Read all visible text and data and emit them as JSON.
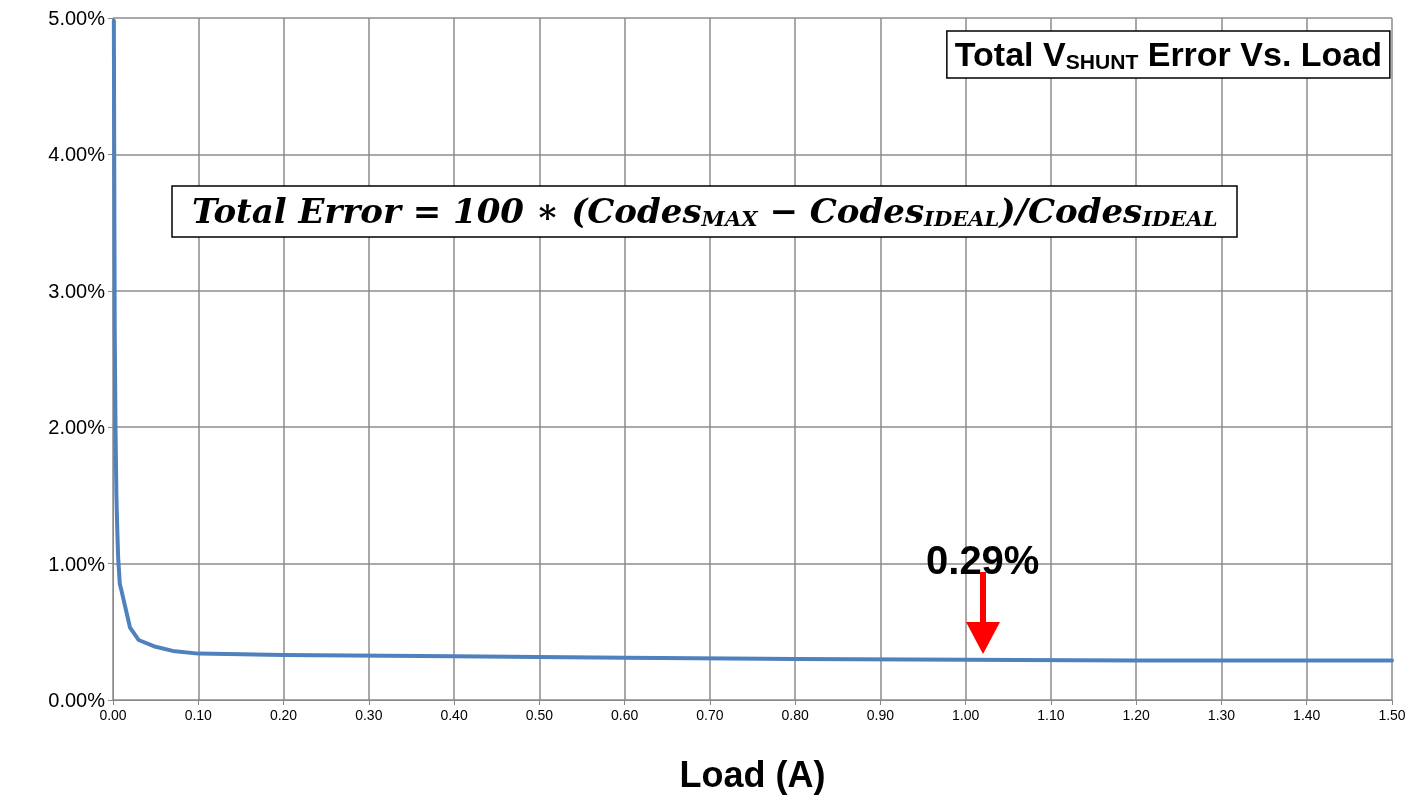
{
  "chart_data": {
    "type": "line",
    "title": "Total V$_{SHUNT}$ Error Vs. Load",
    "xlabel": "Load (A)",
    "annotations": [
      "Total Error = 100 ∗ (Codes$_{MAX}$ − Codes$_{IDEAL}$)/Codes$_{IDEAL}$",
      {
        "text": "0.29%",
        "x": 1.02,
        "y": 0.29
      }
    ],
    "series": [
      {
        "color": "#4f81bd",
        "x": [
          0.001,
          0.002,
          0.003,
          0.004,
          0.005,
          0.006,
          0.007,
          0.008,
          0.01,
          0.02,
          0.03,
          0.05,
          0.07,
          0.1,
          0.2,
          0.4,
          0.6,
          0.8,
          1.0,
          1.2,
          1.5
        ],
        "values": [
          4.98,
          2.72,
          1.97,
          1.5,
          1.25,
          1.05,
          0.95,
          0.85,
          0.8,
          0.53,
          0.44,
          0.39,
          0.36,
          0.34,
          0.33,
          0.32,
          0.31,
          0.3,
          0.295,
          0.29,
          0.29
        ]
      }
    ],
    "xlim": [
      0,
      1.5
    ],
    "xticks": [
      {
        "value": 0,
        "label": "0.00"
      },
      {
        "value": 0.1,
        "label": "0.10"
      },
      {
        "value": 0.2,
        "label": "0.20"
      },
      {
        "value": 0.3,
        "label": "0.30"
      },
      {
        "value": 0.4,
        "label": "0.40"
      },
      {
        "value": 0.5,
        "label": "0.50"
      },
      {
        "value": 0.6,
        "label": "0.60"
      },
      {
        "value": 0.7,
        "label": "0.70"
      },
      {
        "value": 0.8,
        "label": "0.80"
      },
      {
        "value": 0.9,
        "label": "0.90"
      },
      {
        "value": 1.0,
        "label": "1.00"
      },
      {
        "value": 1.1,
        "label": "1.10"
      },
      {
        "value": 1.2,
        "label": "1.20"
      },
      {
        "value": 1.3,
        "label": "1.30"
      },
      {
        "value": 1.4,
        "label": "1.40"
      },
      {
        "value": 1.5,
        "label": "1.50"
      }
    ],
    "ylim": [
      0,
      5
    ],
    "yticks": [
      {
        "value": 0,
        "label": "0.00%"
      },
      {
        "value": 1,
        "label": "1.00%"
      },
      {
        "value": 2,
        "label": "2.00%"
      },
      {
        "value": 3,
        "label": "3.00%"
      },
      {
        "value": 4,
        "label": "4.00%"
      },
      {
        "value": 5,
        "label": "5.00%"
      }
    ],
    "grid": true,
    "marker": "none",
    "line_style": "solid"
  }
}
